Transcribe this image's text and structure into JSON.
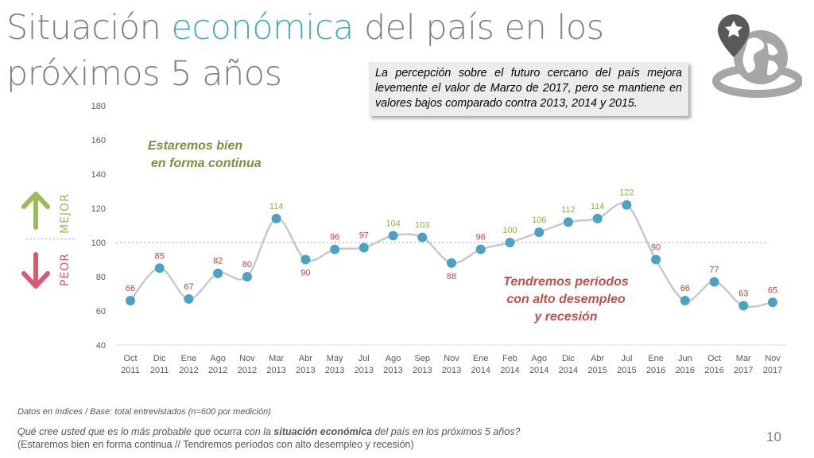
{
  "title": {
    "part1": "Situación ",
    "accent": "económica",
    "part2": " del país en los",
    "line2": "próximos 5 años"
  },
  "callout": "La percepción sobre el futuro cercano del país mejora levemente el valor de Marzo de 2017, pero se mantiene en valores bajos comparado contra 2013, 2014 y 2015.",
  "indicator": {
    "better": "MEJOR",
    "worse": "PEOR",
    "better_color": "#9bbb59",
    "worse_color": "#d9596f"
  },
  "annotations": {
    "better_line1": "Estaremos bien",
    "better_line2": "en forma continua",
    "worse_line1": "Tendremos períodos",
    "worse_line2": "con alto desempleo",
    "worse_line3": "y recesión"
  },
  "chart_data": {
    "type": "line",
    "categories": [
      [
        "Oct",
        "2011"
      ],
      [
        "Dic",
        "2011"
      ],
      [
        "Ene",
        "2012"
      ],
      [
        "Ago",
        "2012"
      ],
      [
        "Nov",
        "2012"
      ],
      [
        "Mar",
        "2013"
      ],
      [
        "Abr",
        "2013"
      ],
      [
        "May",
        "2013"
      ],
      [
        "Jul",
        "2013"
      ],
      [
        "Ago",
        "2013"
      ],
      [
        "Sep",
        "2013"
      ],
      [
        "Nov",
        "2013"
      ],
      [
        "Ene",
        "2014"
      ],
      [
        "Feb",
        "2014"
      ],
      [
        "Ago",
        "2014"
      ],
      [
        "Dic",
        "2014"
      ],
      [
        "Abr",
        "2015"
      ],
      [
        "Jul",
        "2015"
      ],
      [
        "Ene",
        "2016"
      ],
      [
        "Jun",
        "2016"
      ],
      [
        "Oct",
        "2016"
      ],
      [
        "Mar",
        "2017"
      ],
      [
        "Nov",
        "2017"
      ]
    ],
    "values": [
      66,
      85,
      67,
      82,
      80,
      114,
      90,
      96,
      97,
      104,
      103,
      88,
      96,
      100,
      106,
      112,
      114,
      122,
      90,
      66,
      77,
      63,
      65
    ],
    "ylim": [
      40,
      180
    ],
    "yticks": [
      40,
      60,
      80,
      100,
      120,
      140,
      160,
      180
    ],
    "reference_line": 100,
    "line_color": "#c8c8c8",
    "marker_color": "#4aa3c3",
    "above_label_color": "#8db33e",
    "below_label_color": "#b5453f",
    "grid": false
  },
  "footer": {
    "note": "Datos en índices / Base: total entrevistados (n=600 por medición)",
    "q_pre": "Qué cree usted que es lo más probable que ocurra con la ",
    "q_bold": "situación económica",
    "q_post": " del país en los próximos 5 años?",
    "options": "(Estaremos bien en forma continua // Tendremos períodos con alto desempleo y recesión)"
  },
  "page_number": "10"
}
